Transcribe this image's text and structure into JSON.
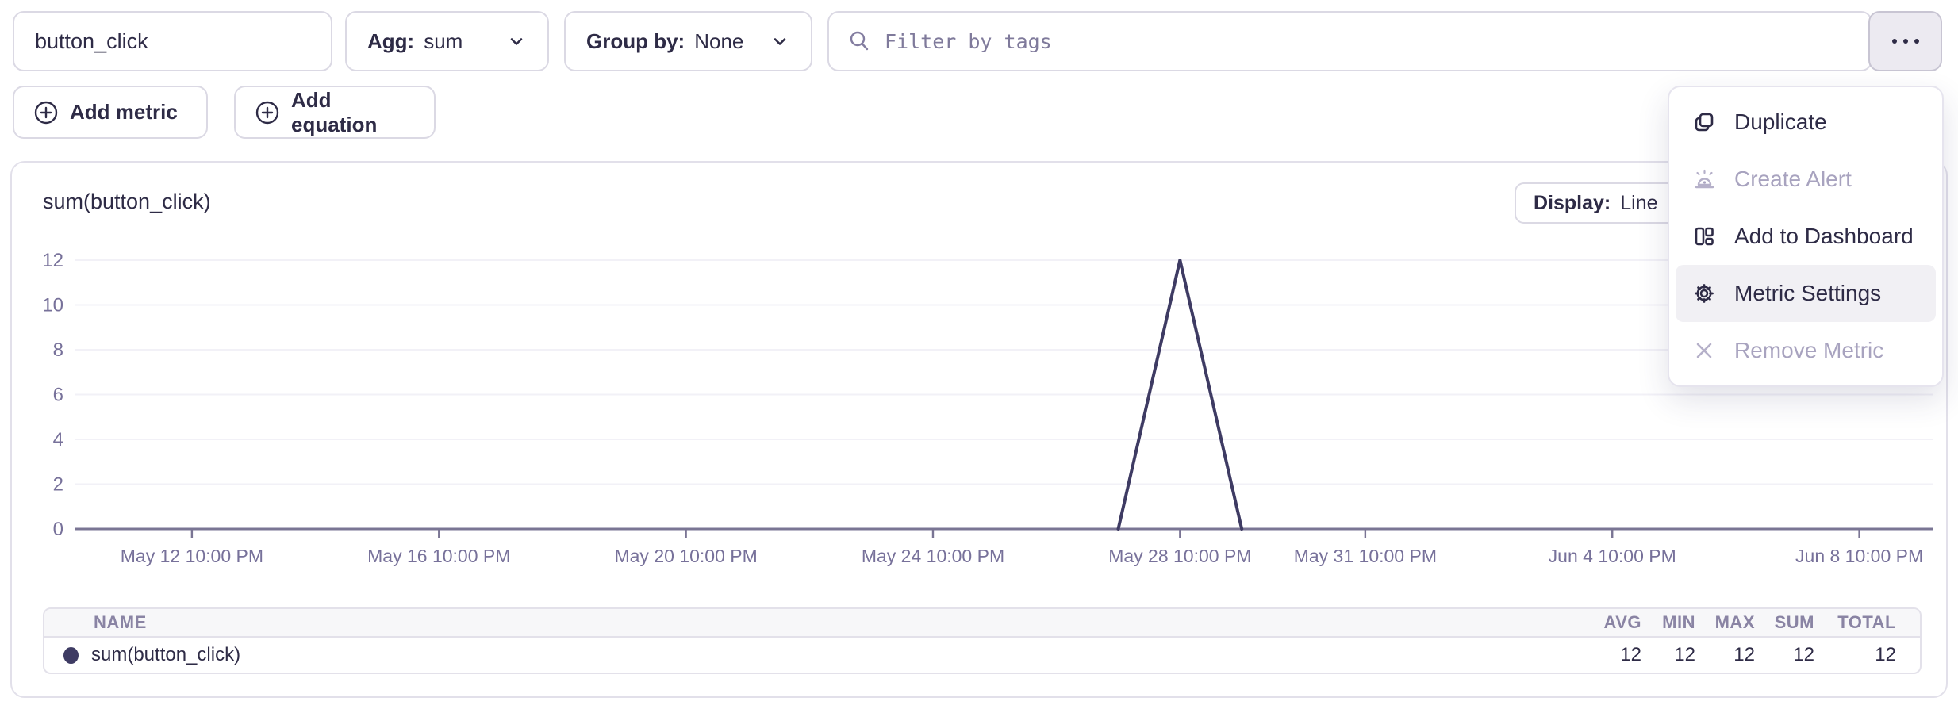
{
  "toolbar": {
    "metric_name_value": "button_click",
    "agg_label": "Agg:",
    "agg_value": "sum",
    "group_by_label": "Group by:",
    "group_by_value": "None",
    "filter_placeholder": "Filter by tags",
    "add_metric_label": "Add metric",
    "add_equation_label": "Add equation"
  },
  "menu": {
    "items": [
      {
        "label": "Duplicate",
        "icon": "duplicate-icon",
        "disabled": false,
        "highlighted": false
      },
      {
        "label": "Create Alert",
        "icon": "alert-icon",
        "disabled": true,
        "highlighted": false
      },
      {
        "label": "Add to Dashboard",
        "icon": "dashboard-icon",
        "disabled": false,
        "highlighted": false
      },
      {
        "label": "Metric Settings",
        "icon": "gear-icon",
        "disabled": false,
        "highlighted": true
      },
      {
        "label": "Remove Metric",
        "icon": "close-icon",
        "disabled": true,
        "highlighted": false
      }
    ]
  },
  "panel": {
    "title": "sum(button_click)",
    "display_label": "Display:",
    "display_value": "Line"
  },
  "chart_data": {
    "type": "line",
    "title": "sum(button_click)",
    "xlabel": "",
    "ylabel": "",
    "ylim": [
      0,
      12
    ],
    "y_ticks": [
      0,
      2,
      4,
      6,
      8,
      10,
      12
    ],
    "x_domain_days": [
      -1.9,
      28.2
    ],
    "x_ticks": [
      {
        "label": "May 12 10:00 PM",
        "day": 0
      },
      {
        "label": "May 16 10:00 PM",
        "day": 4
      },
      {
        "label": "May 20 10:00 PM",
        "day": 8
      },
      {
        "label": "May 24 10:00 PM",
        "day": 12
      },
      {
        "label": "May 28 10:00 PM",
        "day": 16
      },
      {
        "label": "May 31 10:00 PM",
        "day": 19
      },
      {
        "label": "Jun 4 10:00 PM",
        "day": 23
      },
      {
        "label": "Jun 8 10:00 PM",
        "day": 27
      }
    ],
    "grid": "horizontal",
    "series": [
      {
        "name": "sum(button_click)",
        "color": "#3e3b63",
        "points": [
          {
            "label": "May 27 10:00 PM",
            "day": 15,
            "value": 0
          },
          {
            "label": "May 28 10:00 PM",
            "day": 16,
            "value": 12
          },
          {
            "label": "May 29 10:00 PM",
            "day": 17,
            "value": 0
          }
        ]
      }
    ],
    "axis_color": "#7a7594",
    "grid_color": "#f2f1f7",
    "tick_label_color": "#77719a"
  },
  "table": {
    "columns": [
      "NAME",
      "AVG",
      "MIN",
      "MAX",
      "SUM",
      "TOTAL"
    ],
    "rows": [
      {
        "name": "sum(button_click)",
        "avg": 12,
        "min": 12,
        "max": 12,
        "sum": 12,
        "total": 12,
        "color": "#3e3b63"
      }
    ]
  },
  "colors": {
    "text": "#2e2b46",
    "muted": "#77719a",
    "disabled": "#a8a3bf",
    "border": "#dbd9e4",
    "series": "#3e3b63",
    "menu_highlight": "#f1f0f4"
  }
}
